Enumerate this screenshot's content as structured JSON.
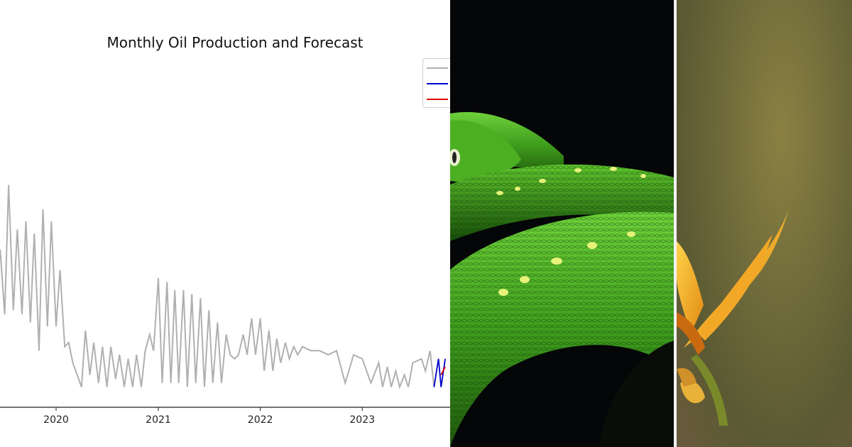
{
  "chart_data": {
    "type": "line",
    "title": "Monthly Oil Production and Forecast",
    "xlabel": "",
    "ylabel": "",
    "x_tick_labels": [
      "2020",
      "2021",
      "2022",
      "2023"
    ],
    "grid": false,
    "legend": "top-right",
    "series": [
      {
        "color": "#b0b0b0",
        "points": [
          [
            "2019-06",
            0.28
          ],
          [
            "2019-06-15",
            0.39
          ],
          [
            "2019-07",
            0.23
          ],
          [
            "2019-07-15",
            0.55
          ],
          [
            "2019-08",
            0.24
          ],
          [
            "2019-08-15",
            0.44
          ],
          [
            "2019-09",
            0.23
          ],
          [
            "2019-09-15",
            0.46
          ],
          [
            "2019-10",
            0.21
          ],
          [
            "2019-10-15",
            0.43
          ],
          [
            "2019-11",
            0.14
          ],
          [
            "2019-11-15",
            0.49
          ],
          [
            "2019-12",
            0.2
          ],
          [
            "2019-12-15",
            0.46
          ],
          [
            "2020-01",
            0.2
          ],
          [
            "2020-01-15",
            0.34
          ],
          [
            "2020-02",
            0.15
          ],
          [
            "2020-02-15",
            0.16
          ],
          [
            "2020-03",
            0.11
          ],
          [
            "2020-04",
            0.05
          ],
          [
            "2020-04-15",
            0.19
          ],
          [
            "2020-05",
            0.08
          ],
          [
            "2020-05-15",
            0.16
          ],
          [
            "2020-06",
            0.06
          ],
          [
            "2020-06-15",
            0.15
          ],
          [
            "2020-07",
            0.05
          ],
          [
            "2020-07-15",
            0.15
          ],
          [
            "2020-08",
            0.07
          ],
          [
            "2020-08-15",
            0.13
          ],
          [
            "2020-09",
            0.05
          ],
          [
            "2020-09-15",
            0.12
          ],
          [
            "2020-10",
            0.05
          ],
          [
            "2020-10-15",
            0.13
          ],
          [
            "2020-11",
            0.05
          ],
          [
            "2020-11-15",
            0.14
          ],
          [
            "2020-12",
            0.18
          ],
          [
            "2020-12-15",
            0.14
          ],
          [
            "2021-01",
            0.32
          ],
          [
            "2021-01-15",
            0.06
          ],
          [
            "2021-02",
            0.31
          ],
          [
            "2021-02-15",
            0.06
          ],
          [
            "2021-03",
            0.29
          ],
          [
            "2021-03-15",
            0.06
          ],
          [
            "2021-04",
            0.29
          ],
          [
            "2021-04-15",
            0.05
          ],
          [
            "2021-05",
            0.28
          ],
          [
            "2021-05-15",
            0.06
          ],
          [
            "2021-06",
            0.27
          ],
          [
            "2021-06-15",
            0.05
          ],
          [
            "2021-07",
            0.24
          ],
          [
            "2021-07-15",
            0.06
          ],
          [
            "2021-08",
            0.21
          ],
          [
            "2021-08-15",
            0.06
          ],
          [
            "2021-09",
            0.18
          ],
          [
            "2021-09-15",
            0.13
          ],
          [
            "2021-10",
            0.12
          ],
          [
            "2021-10-15",
            0.13
          ],
          [
            "2021-11",
            0.18
          ],
          [
            "2021-11-15",
            0.13
          ],
          [
            "2021-12",
            0.22
          ],
          [
            "2021-12-15",
            0.13
          ],
          [
            "2022-01",
            0.22
          ],
          [
            "2022-01-15",
            0.09
          ],
          [
            "2022-02",
            0.19
          ],
          [
            "2022-02-15",
            0.09
          ],
          [
            "2022-03",
            0.17
          ],
          [
            "2022-03-15",
            0.11
          ],
          [
            "2022-04",
            0.16
          ],
          [
            "2022-04-15",
            0.12
          ],
          [
            "2022-05",
            0.15
          ],
          [
            "2022-05-15",
            0.13
          ],
          [
            "2022-06",
            0.15
          ],
          [
            "2022-07",
            0.14
          ],
          [
            "2022-08",
            0.14
          ],
          [
            "2022-09",
            0.13
          ],
          [
            "2022-10",
            0.14
          ],
          [
            "2022-11",
            0.06
          ],
          [
            "2022-12",
            0.13
          ],
          [
            "2023-01",
            0.12
          ],
          [
            "2023-02",
            0.06
          ],
          [
            "2023-03",
            0.11
          ],
          [
            "2023-03-15",
            0.05
          ],
          [
            "2023-04",
            0.1
          ],
          [
            "2023-04-15",
            0.05
          ],
          [
            "2023-05",
            0.09
          ],
          [
            "2023-05-15",
            0.05
          ],
          [
            "2023-06",
            0.08
          ],
          [
            "2023-06-15",
            0.05
          ],
          [
            "2023-07",
            0.11
          ],
          [
            "2023-08",
            0.12
          ],
          [
            "2023-08-15",
            0.09
          ],
          [
            "2023-09",
            0.14
          ],
          [
            "2023-09-15",
            0.05
          ]
        ]
      },
      {
        "color": "#0000cc",
        "points": [
          [
            "2023-09-15",
            0.05
          ],
          [
            "2023-10",
            0.12
          ],
          [
            "2023-10-10",
            0.05
          ],
          [
            "2023-10-25",
            0.12
          ]
        ]
      },
      {
        "color": "#dd0000",
        "points": [
          [
            "2023-10-10",
            0.08
          ],
          [
            "2023-10-25",
            0.1
          ]
        ]
      }
    ]
  },
  "images": [
    {
      "subject": "green-tree-python"
    },
    {
      "subject": "bird-of-paradise-flower"
    }
  ]
}
